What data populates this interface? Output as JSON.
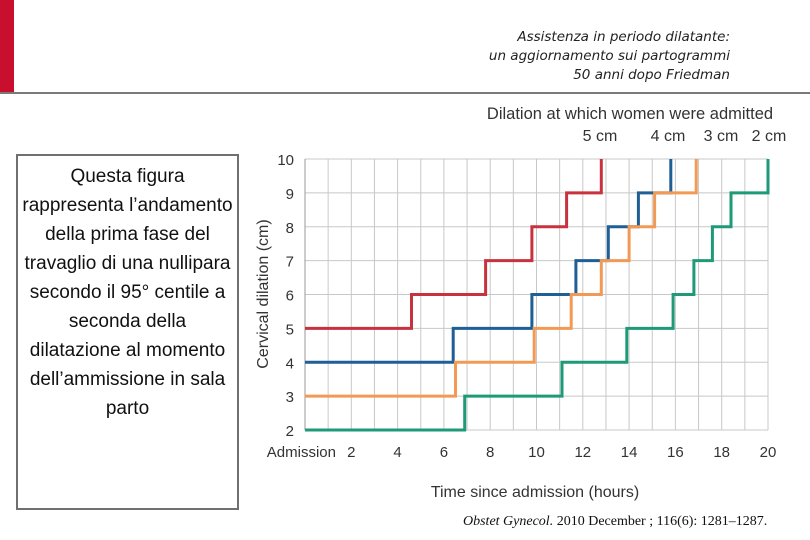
{
  "header": {
    "line1": "Assistenza in periodo dilatante:",
    "line2": "un aggiornamento sui partogrammi",
    "line3": "50 anni dopo Friedman"
  },
  "caption": "Questa figura rappresenta l’andamento della prima fase del travaglio di una nullipara secondo il 95° centile a seconda della dilatazione al momento dell’ammissione in sala parto",
  "citation": {
    "journal": "Obstet Gynecol.",
    "details": " 2010 December ; 116(6): 1281–1287."
  },
  "colors": {
    "accent_bar": "#c8102e"
  },
  "chart_data": {
    "type": "line",
    "step": true,
    "title": "Dilation at which women were admitted",
    "xlabel": "Time since admission (hours)",
    "ylabel": "Cervical dilation (cm)",
    "x_tick_labels": [
      "Admission",
      "2",
      "4",
      "6",
      "8",
      "10",
      "12",
      "14",
      "16",
      "18",
      "20"
    ],
    "x_ticks": [
      0,
      2,
      4,
      6,
      8,
      10,
      12,
      14,
      16,
      18,
      20
    ],
    "y_ticks": [
      2,
      3,
      4,
      5,
      6,
      7,
      8,
      9,
      10
    ],
    "xlim": [
      0,
      20
    ],
    "ylim": [
      2,
      10
    ],
    "grid": true,
    "series": [
      {
        "name": "5 cm",
        "color": "#c8323f",
        "points": [
          [
            0,
            5
          ],
          [
            4.6,
            5
          ],
          [
            4.6,
            6
          ],
          [
            7.8,
            6
          ],
          [
            7.8,
            7
          ],
          [
            9.8,
            7
          ],
          [
            9.8,
            8
          ],
          [
            11.3,
            8
          ],
          [
            11.3,
            9
          ],
          [
            12.8,
            9
          ],
          [
            12.8,
            10
          ]
        ]
      },
      {
        "name": "4 cm",
        "color": "#1f5f96",
        "points": [
          [
            0,
            4
          ],
          [
            6.4,
            4
          ],
          [
            6.4,
            5
          ],
          [
            9.8,
            5
          ],
          [
            9.8,
            6
          ],
          [
            11.7,
            6
          ],
          [
            11.7,
            7
          ],
          [
            13.1,
            7
          ],
          [
            13.1,
            8
          ],
          [
            14.4,
            8
          ],
          [
            14.4,
            9
          ],
          [
            15.8,
            9
          ],
          [
            15.8,
            10
          ]
        ]
      },
      {
        "name": "3 cm",
        "color": "#f29a55",
        "points": [
          [
            0,
            3
          ],
          [
            6.5,
            3
          ],
          [
            6.5,
            4
          ],
          [
            9.9,
            4
          ],
          [
            9.9,
            5
          ],
          [
            11.5,
            5
          ],
          [
            11.5,
            6
          ],
          [
            12.8,
            6
          ],
          [
            12.8,
            7
          ],
          [
            14.0,
            7
          ],
          [
            14.0,
            8
          ],
          [
            15.1,
            8
          ],
          [
            15.1,
            9
          ],
          [
            16.9,
            9
          ],
          [
            16.9,
            10
          ]
        ]
      },
      {
        "name": "2 cm",
        "color": "#1f9a78",
        "points": [
          [
            0,
            2
          ],
          [
            6.9,
            2
          ],
          [
            6.9,
            3
          ],
          [
            11.1,
            3
          ],
          [
            11.1,
            4
          ],
          [
            13.9,
            4
          ],
          [
            13.9,
            5
          ],
          [
            15.9,
            5
          ],
          [
            15.9,
            6
          ],
          [
            16.8,
            6
          ],
          [
            16.8,
            7
          ],
          [
            17.6,
            7
          ],
          [
            17.6,
            8
          ],
          [
            18.4,
            8
          ],
          [
            18.4,
            9
          ],
          [
            20.0,
            9
          ],
          [
            20.0,
            10
          ]
        ]
      }
    ]
  }
}
